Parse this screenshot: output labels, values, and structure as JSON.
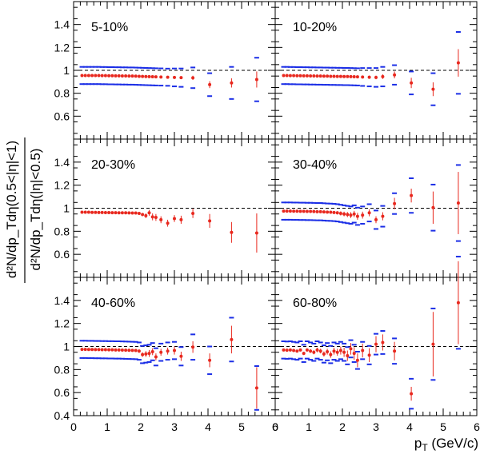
{
  "chart_data": {
    "type": "scatter",
    "xlabel": "p",
    "xlabel_sub": "T",
    "xlabel_unit": " (GeV/c)",
    "ylabel_num": "d²N/dp_Tdη(0.5<|η|<1)",
    "ylabel_den": "d²N/dp_Tdη(|η|<0.5)",
    "xlim": [
      0,
      6
    ],
    "ylim": [
      0.4,
      1.6
    ],
    "x_ticks": [
      0,
      1,
      2,
      3,
      4,
      5,
      6
    ],
    "y_ticks": [
      0.4,
      0.6,
      0.8,
      1,
      1.2,
      1.4
    ],
    "reference_line": 1,
    "colors": {
      "points": "#e8281e",
      "systematics": "#1b2ee6",
      "reference": "#000000"
    },
    "panels": [
      {
        "label": "5-10%",
        "x": [
          0.25,
          0.35,
          0.45,
          0.55,
          0.65,
          0.75,
          0.85,
          0.95,
          1.05,
          1.15,
          1.25,
          1.35,
          1.45,
          1.55,
          1.65,
          1.75,
          1.85,
          1.95,
          2.05,
          2.15,
          2.25,
          2.35,
          2.45,
          2.6,
          2.8,
          3.0,
          3.2,
          3.55,
          4.05,
          4.7,
          5.45
        ],
        "y": [
          0.955,
          0.955,
          0.955,
          0.955,
          0.955,
          0.955,
          0.954,
          0.954,
          0.953,
          0.953,
          0.952,
          0.952,
          0.951,
          0.951,
          0.95,
          0.95,
          0.949,
          0.948,
          0.947,
          0.946,
          0.945,
          0.944,
          0.943,
          0.942,
          0.94,
          0.938,
          0.936,
          0.935,
          0.875,
          0.89,
          0.92
        ],
        "err": [
          0.006,
          0.006,
          0.006,
          0.006,
          0.006,
          0.006,
          0.006,
          0.006,
          0.006,
          0.006,
          0.006,
          0.006,
          0.006,
          0.006,
          0.006,
          0.006,
          0.006,
          0.007,
          0.007,
          0.007,
          0.007,
          0.007,
          0.008,
          0.008,
          0.009,
          0.01,
          0.012,
          0.018,
          0.03,
          0.04,
          0.07
        ],
        "sys": [
          0.075,
          0.075,
          0.075,
          0.075,
          0.075,
          0.075,
          0.075,
          0.075,
          0.075,
          0.075,
          0.075,
          0.075,
          0.075,
          0.075,
          0.075,
          0.075,
          0.075,
          0.075,
          0.075,
          0.075,
          0.075,
          0.075,
          0.075,
          0.075,
          0.075,
          0.078,
          0.08,
          0.09,
          0.1,
          0.14,
          0.19
        ]
      },
      {
        "label": "10-20%",
        "x": [
          0.25,
          0.35,
          0.45,
          0.55,
          0.65,
          0.75,
          0.85,
          0.95,
          1.05,
          1.15,
          1.25,
          1.35,
          1.45,
          1.55,
          1.65,
          1.75,
          1.85,
          1.95,
          2.05,
          2.15,
          2.25,
          2.35,
          2.45,
          2.6,
          2.8,
          3.0,
          3.2,
          3.55,
          4.05,
          4.7,
          5.45
        ],
        "y": [
          0.955,
          0.955,
          0.954,
          0.954,
          0.953,
          0.953,
          0.952,
          0.952,
          0.951,
          0.951,
          0.95,
          0.95,
          0.949,
          0.949,
          0.948,
          0.948,
          0.947,
          0.947,
          0.946,
          0.946,
          0.945,
          0.944,
          0.943,
          0.942,
          0.94,
          0.938,
          0.945,
          0.96,
          0.89,
          0.835,
          1.065
        ],
        "err": [
          0.006,
          0.006,
          0.006,
          0.006,
          0.006,
          0.006,
          0.006,
          0.006,
          0.006,
          0.006,
          0.006,
          0.006,
          0.006,
          0.006,
          0.006,
          0.006,
          0.007,
          0.007,
          0.007,
          0.008,
          0.008,
          0.009,
          0.01,
          0.012,
          0.014,
          0.016,
          0.02,
          0.03,
          0.045,
          0.06,
          0.12
        ],
        "sys": [
          0.075,
          0.075,
          0.075,
          0.075,
          0.075,
          0.075,
          0.075,
          0.075,
          0.075,
          0.075,
          0.075,
          0.075,
          0.075,
          0.075,
          0.075,
          0.075,
          0.075,
          0.075,
          0.075,
          0.075,
          0.075,
          0.075,
          0.075,
          0.078,
          0.08,
          0.082,
          0.085,
          0.085,
          0.1,
          0.14,
          0.27
        ]
      },
      {
        "label": "20-30%",
        "x": [
          0.25,
          0.35,
          0.45,
          0.55,
          0.65,
          0.75,
          0.85,
          0.95,
          1.05,
          1.15,
          1.25,
          1.35,
          1.45,
          1.55,
          1.65,
          1.75,
          1.85,
          1.95,
          2.05,
          2.15,
          2.25,
          2.35,
          2.45,
          2.6,
          2.8,
          3.0,
          3.2,
          3.55,
          4.05,
          4.7,
          5.45
        ],
        "y": [
          0.965,
          0.965,
          0.965,
          0.964,
          0.964,
          0.963,
          0.963,
          0.962,
          0.962,
          0.961,
          0.961,
          0.96,
          0.96,
          0.96,
          0.959,
          0.958,
          0.958,
          0.955,
          0.945,
          0.935,
          0.96,
          0.925,
          0.92,
          0.9,
          0.87,
          0.91,
          0.9,
          0.955,
          0.89,
          0.79,
          0.785
        ],
        "err": [
          0.006,
          0.006,
          0.006,
          0.006,
          0.006,
          0.006,
          0.006,
          0.006,
          0.006,
          0.006,
          0.006,
          0.006,
          0.007,
          0.007,
          0.007,
          0.007,
          0.008,
          0.01,
          0.014,
          0.02,
          0.025,
          0.03,
          0.03,
          0.03,
          0.03,
          0.03,
          0.035,
          0.04,
          0.06,
          0.09,
          0.17
        ]
      },
      {
        "label": "30-40%",
        "x": [
          0.25,
          0.35,
          0.45,
          0.55,
          0.65,
          0.75,
          0.85,
          0.95,
          1.05,
          1.15,
          1.25,
          1.35,
          1.45,
          1.55,
          1.65,
          1.75,
          1.85,
          1.95,
          2.05,
          2.15,
          2.25,
          2.35,
          2.45,
          2.6,
          2.8,
          3.0,
          3.2,
          3.55,
          4.05,
          4.7,
          5.45
        ],
        "y": [
          0.975,
          0.975,
          0.975,
          0.974,
          0.974,
          0.973,
          0.973,
          0.972,
          0.972,
          0.971,
          0.97,
          0.97,
          0.968,
          0.966,
          0.965,
          0.963,
          0.96,
          0.955,
          0.95,
          0.945,
          0.94,
          0.95,
          0.93,
          0.94,
          0.96,
          0.9,
          0.93,
          1.04,
          1.11,
          1.005,
          1.045
        ],
        "err": [
          0.006,
          0.006,
          0.006,
          0.006,
          0.006,
          0.006,
          0.006,
          0.006,
          0.006,
          0.006,
          0.006,
          0.007,
          0.008,
          0.009,
          0.01,
          0.012,
          0.014,
          0.018,
          0.02,
          0.022,
          0.025,
          0.027,
          0.03,
          0.03,
          0.03,
          0.03,
          0.035,
          0.05,
          0.06,
          0.14,
          0.27
        ],
        "sys": [
          0.075,
          0.075,
          0.075,
          0.075,
          0.075,
          0.075,
          0.075,
          0.075,
          0.075,
          0.075,
          0.075,
          0.075,
          0.075,
          0.075,
          0.075,
          0.075,
          0.075,
          0.075,
          0.075,
          0.075,
          0.075,
          0.075,
          0.075,
          0.075,
          0.075,
          0.08,
          0.09,
          0.09,
          0.15,
          0.2,
          0.33
        ]
      },
      {
        "label": "40-60%",
        "x": [
          0.25,
          0.35,
          0.45,
          0.55,
          0.65,
          0.75,
          0.85,
          0.95,
          1.05,
          1.15,
          1.25,
          1.35,
          1.45,
          1.55,
          1.65,
          1.75,
          1.85,
          1.95,
          2.05,
          2.15,
          2.25,
          2.35,
          2.45,
          2.6,
          2.8,
          3.0,
          3.2,
          3.55,
          4.05,
          4.7,
          5.45
        ],
        "y": [
          0.975,
          0.975,
          0.974,
          0.974,
          0.973,
          0.973,
          0.972,
          0.972,
          0.971,
          0.971,
          0.97,
          0.97,
          0.969,
          0.968,
          0.967,
          0.966,
          0.965,
          0.96,
          0.93,
          0.935,
          0.94,
          0.955,
          0.91,
          0.95,
          0.96,
          0.965,
          0.915,
          0.995,
          0.88,
          1.06,
          0.64
        ],
        "err": [
          0.006,
          0.006,
          0.006,
          0.006,
          0.006,
          0.006,
          0.006,
          0.006,
          0.006,
          0.006,
          0.006,
          0.006,
          0.007,
          0.007,
          0.008,
          0.01,
          0.012,
          0.015,
          0.02,
          0.025,
          0.03,
          0.03,
          0.03,
          0.03,
          0.03,
          0.035,
          0.04,
          0.05,
          0.06,
          0.12,
          0.18
        ],
        "sys": [
          0.075,
          0.075,
          0.075,
          0.075,
          0.075,
          0.075,
          0.075,
          0.075,
          0.075,
          0.075,
          0.075,
          0.075,
          0.075,
          0.075,
          0.075,
          0.075,
          0.075,
          0.075,
          0.075,
          0.075,
          0.075,
          0.075,
          0.075,
          0.075,
          0.075,
          0.075,
          0.08,
          0.11,
          0.12,
          0.19,
          0.19
        ]
      },
      {
        "label": "60-80%",
        "x": [
          0.25,
          0.35,
          0.45,
          0.55,
          0.65,
          0.75,
          0.85,
          0.95,
          1.05,
          1.15,
          1.25,
          1.35,
          1.45,
          1.55,
          1.65,
          1.75,
          1.85,
          1.95,
          2.05,
          2.15,
          2.25,
          2.35,
          2.45,
          2.6,
          2.8,
          3.0,
          3.2,
          3.55,
          4.05,
          4.7,
          5.45
        ],
        "y": [
          0.97,
          0.968,
          0.97,
          0.965,
          0.96,
          0.97,
          0.94,
          0.97,
          0.96,
          0.95,
          0.97,
          0.96,
          0.935,
          0.955,
          0.93,
          0.96,
          0.95,
          0.965,
          0.95,
          0.92,
          0.98,
          0.94,
          0.88,
          0.965,
          0.925,
          1.02,
          1.035,
          0.96,
          0.59,
          1.02,
          1.38
        ],
        "err": [
          0.01,
          0.01,
          0.01,
          0.01,
          0.012,
          0.012,
          0.014,
          0.014,
          0.016,
          0.018,
          0.02,
          0.02,
          0.022,
          0.025,
          0.028,
          0.03,
          0.03,
          0.035,
          0.04,
          0.045,
          0.05,
          0.055,
          0.06,
          0.06,
          0.06,
          0.07,
          0.07,
          0.08,
          0.06,
          0.28,
          0.36
        ],
        "sys": [
          0.075,
          0.075,
          0.075,
          0.075,
          0.075,
          0.075,
          0.075,
          0.075,
          0.075,
          0.075,
          0.075,
          0.075,
          0.075,
          0.075,
          0.075,
          0.075,
          0.075,
          0.075,
          0.075,
          0.075,
          0.075,
          0.075,
          0.075,
          0.075,
          0.08,
          0.09,
          0.1,
          0.11,
          0.13,
          0.31,
          0.4
        ]
      }
    ]
  }
}
